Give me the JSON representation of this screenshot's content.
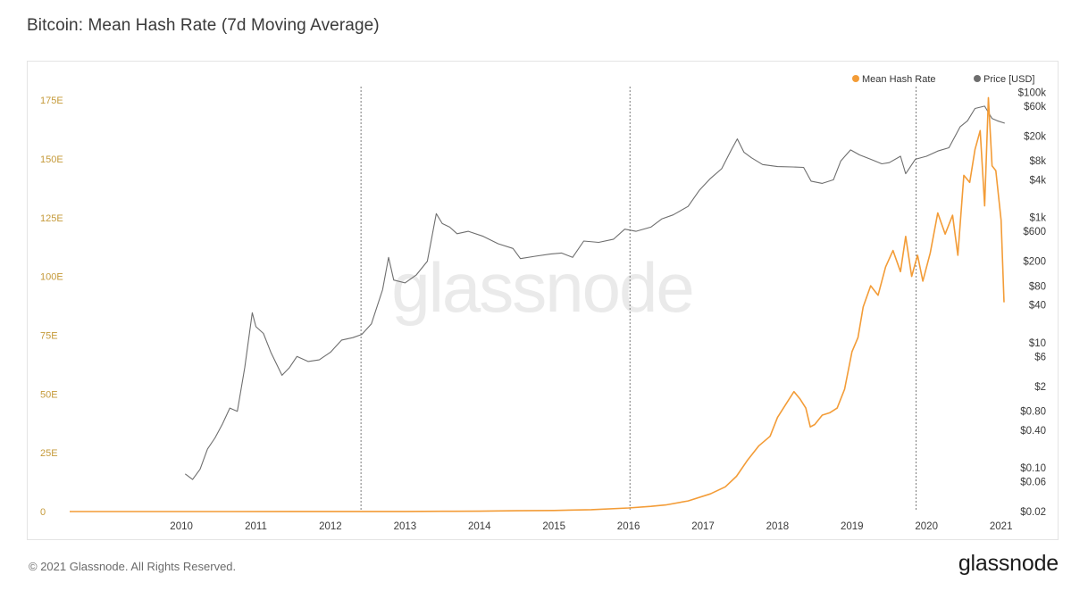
{
  "title": "Bitcoin: Mean Hash Rate (7d Moving Average)",
  "footer": {
    "copyright": "© 2021 Glassnode. All Rights Reserved.",
    "brand": "glassnode"
  },
  "watermark": "glassnode",
  "colors": {
    "hash_rate": "#f39c37",
    "price": "#6e6e6e",
    "left_axis_text": "#c59a3a",
    "right_axis_text": "#3a3a3a",
    "x_axis_text": "#3a3a3a",
    "event_line": "#7a7a7a"
  },
  "chart_data": {
    "type": "line",
    "title": "Bitcoin: Mean Hash Rate (7d Moving Average)",
    "legend_position": "top-right",
    "grid": false,
    "x_ticks": [
      "2010",
      "2011",
      "2012",
      "2013",
      "2014",
      "2015",
      "2016",
      "2017",
      "2018",
      "2019",
      "2020",
      "2021"
    ],
    "x_range": [
      2009.0,
      2021.6
    ],
    "y_left": {
      "ticks": [
        "0",
        "25E",
        "50E",
        "75E",
        "100E",
        "125E",
        "150E",
        "175E"
      ],
      "range": [
        0,
        183
      ]
    },
    "y_right": {
      "scale": "log",
      "ticks": [
        "$0.02",
        "$0.06",
        "$0.10",
        "$0.40",
        "$0.80",
        "$2",
        "$6",
        "$10",
        "$40",
        "$80",
        "$200",
        "$600",
        "$1k",
        "$4k",
        "$8k",
        "$20k",
        "$60k",
        "$100k"
      ],
      "range": [
        0.02,
        150000
      ]
    },
    "event_lines": [
      2012.91,
      2016.52,
      2020.36
    ],
    "series": [
      {
        "name": "Mean Hash Rate",
        "axis": "left",
        "points": [
          [
            2009.0,
            0
          ],
          [
            2010.0,
            0.001
          ],
          [
            2011.0,
            0.01
          ],
          [
            2012.0,
            0.02
          ],
          [
            2013.0,
            0.03
          ],
          [
            2013.5,
            0.05
          ],
          [
            2014.0,
            0.1
          ],
          [
            2014.5,
            0.15
          ],
          [
            2015.0,
            0.35
          ],
          [
            2015.5,
            0.45
          ],
          [
            2016.0,
            0.8
          ],
          [
            2016.5,
            1.5
          ],
          [
            2016.8,
            2.2
          ],
          [
            2017.0,
            2.8
          ],
          [
            2017.3,
            4.5
          ],
          [
            2017.6,
            7.5
          ],
          [
            2017.8,
            10.5
          ],
          [
            2017.95,
            15
          ],
          [
            2018.1,
            22
          ],
          [
            2018.25,
            28
          ],
          [
            2018.4,
            32
          ],
          [
            2018.5,
            40
          ],
          [
            2018.62,
            46
          ],
          [
            2018.72,
            51
          ],
          [
            2018.8,
            48
          ],
          [
            2018.88,
            44
          ],
          [
            2018.94,
            36
          ],
          [
            2019.0,
            37
          ],
          [
            2019.1,
            41
          ],
          [
            2019.2,
            42
          ],
          [
            2019.3,
            44
          ],
          [
            2019.4,
            52
          ],
          [
            2019.5,
            68
          ],
          [
            2019.58,
            74
          ],
          [
            2019.65,
            87
          ],
          [
            2019.75,
            96
          ],
          [
            2019.85,
            92
          ],
          [
            2019.95,
            104
          ],
          [
            2020.05,
            111
          ],
          [
            2020.15,
            102
          ],
          [
            2020.22,
            117
          ],
          [
            2020.3,
            100
          ],
          [
            2020.38,
            109
          ],
          [
            2020.45,
            98
          ],
          [
            2020.55,
            110
          ],
          [
            2020.65,
            127
          ],
          [
            2020.75,
            118
          ],
          [
            2020.85,
            126
          ],
          [
            2020.92,
            109
          ],
          [
            2021.0,
            143
          ],
          [
            2021.08,
            140
          ],
          [
            2021.15,
            154
          ],
          [
            2021.22,
            162
          ],
          [
            2021.28,
            130
          ],
          [
            2021.33,
            176
          ],
          [
            2021.38,
            147
          ],
          [
            2021.43,
            145
          ],
          [
            2021.5,
            124
          ],
          [
            2021.54,
            89
          ]
        ]
      },
      {
        "name": "Price [USD]",
        "axis": "right",
        "points": [
          [
            2010.55,
            0.08
          ],
          [
            2010.65,
            0.065
          ],
          [
            2010.75,
            0.095
          ],
          [
            2010.85,
            0.2
          ],
          [
            2010.95,
            0.3
          ],
          [
            2011.05,
            0.5
          ],
          [
            2011.15,
            0.9
          ],
          [
            2011.25,
            0.8
          ],
          [
            2011.35,
            4
          ],
          [
            2011.45,
            30
          ],
          [
            2011.5,
            18
          ],
          [
            2011.6,
            14
          ],
          [
            2011.7,
            7
          ],
          [
            2011.85,
            3
          ],
          [
            2011.95,
            4
          ],
          [
            2012.05,
            6
          ],
          [
            2012.2,
            5
          ],
          [
            2012.35,
            5.3
          ],
          [
            2012.5,
            7
          ],
          [
            2012.65,
            11
          ],
          [
            2012.8,
            12
          ],
          [
            2012.92,
            13.5
          ],
          [
            2013.05,
            20
          ],
          [
            2013.2,
            70
          ],
          [
            2013.28,
            230
          ],
          [
            2013.35,
            100
          ],
          [
            2013.5,
            90
          ],
          [
            2013.65,
            120
          ],
          [
            2013.8,
            200
          ],
          [
            2013.92,
            1150
          ],
          [
            2014.0,
            800
          ],
          [
            2014.1,
            700
          ],
          [
            2014.2,
            550
          ],
          [
            2014.35,
            600
          ],
          [
            2014.55,
            500
          ],
          [
            2014.75,
            380
          ],
          [
            2014.95,
            320
          ],
          [
            2015.05,
            220
          ],
          [
            2015.25,
            240
          ],
          [
            2015.45,
            260
          ],
          [
            2015.6,
            270
          ],
          [
            2015.75,
            230
          ],
          [
            2015.9,
            420
          ],
          [
            2016.1,
            400
          ],
          [
            2016.3,
            450
          ],
          [
            2016.45,
            650
          ],
          [
            2016.6,
            600
          ],
          [
            2016.8,
            700
          ],
          [
            2016.95,
            950
          ],
          [
            2017.1,
            1100
          ],
          [
            2017.3,
            1500
          ],
          [
            2017.45,
            2700
          ],
          [
            2017.6,
            4200
          ],
          [
            2017.75,
            6000
          ],
          [
            2017.88,
            12000
          ],
          [
            2017.96,
            18000
          ],
          [
            2018.05,
            11000
          ],
          [
            2018.15,
            9000
          ],
          [
            2018.3,
            7000
          ],
          [
            2018.5,
            6500
          ],
          [
            2018.7,
            6400
          ],
          [
            2018.85,
            6300
          ],
          [
            2018.95,
            3800
          ],
          [
            2019.1,
            3500
          ],
          [
            2019.25,
            4000
          ],
          [
            2019.35,
            8000
          ],
          [
            2019.48,
            12000
          ],
          [
            2019.6,
            10000
          ],
          [
            2019.75,
            8500
          ],
          [
            2019.9,
            7200
          ],
          [
            2020.0,
            7500
          ],
          [
            2020.15,
            9500
          ],
          [
            2020.22,
            5000
          ],
          [
            2020.35,
            8500
          ],
          [
            2020.5,
            9500
          ],
          [
            2020.65,
            11500
          ],
          [
            2020.8,
            13000
          ],
          [
            2020.95,
            28000
          ],
          [
            2021.05,
            35000
          ],
          [
            2021.15,
            55000
          ],
          [
            2021.28,
            60000
          ],
          [
            2021.38,
            38000
          ],
          [
            2021.45,
            35000
          ],
          [
            2021.55,
            32000
          ]
        ]
      }
    ]
  }
}
